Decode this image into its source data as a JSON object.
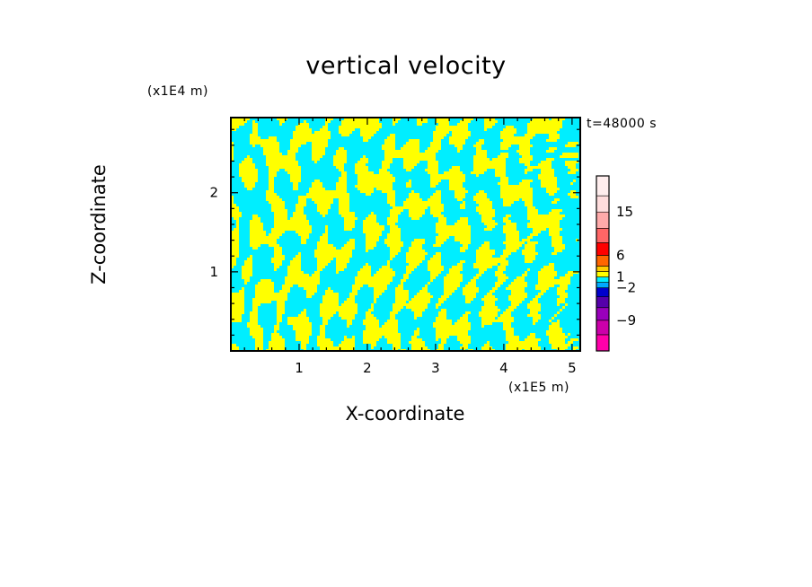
{
  "chart_data": {
    "type": "heatmap",
    "title": "vertical velocity",
    "xlabel": "X-coordinate",
    "ylabel": "Z-coordinate",
    "x_unit": "(x1E5 m)",
    "y_unit": "(x1E4 m)",
    "time_label": "t=48000 s",
    "xlim": [
      0,
      5.12
    ],
    "ylim": [
      0,
      2.95
    ],
    "x_ticks": [
      {
        "value": 1,
        "label": "1"
      },
      {
        "value": 2,
        "label": "2"
      },
      {
        "value": 3,
        "label": "3"
      },
      {
        "value": 4,
        "label": "4"
      },
      {
        "value": 5,
        "label": "5"
      }
    ],
    "y_ticks": [
      {
        "value": 1,
        "label": "1"
      },
      {
        "value": 2,
        "label": "2"
      }
    ],
    "field_colors": {
      "positive": "#ffff00",
      "negative": "#00eeff"
    },
    "colorbar": {
      "levels": [
        -12,
        -9,
        -6,
        -4,
        -2,
        -1,
        1,
        2,
        4,
        6,
        9,
        12,
        15,
        20
      ],
      "colors": [
        "#ff00aa",
        "#cc00aa",
        "#9900bb",
        "#5500aa",
        "#0000cc",
        "#00aaff",
        "#00eeff",
        "#ffff00",
        "#ffcc00",
        "#ff6600",
        "#ff0000",
        "#ff6666",
        "#ffaaaa",
        "#ffdddd",
        "#ffeeee"
      ],
      "tick_labels": [
        {
          "value": 15,
          "label": "15"
        },
        {
          "value": 6,
          "label": "6"
        },
        {
          "value": 1,
          "label": "1"
        },
        {
          "value": -2,
          "label": "−2"
        },
        {
          "value": -9,
          "label": "−9"
        }
      ]
    }
  }
}
